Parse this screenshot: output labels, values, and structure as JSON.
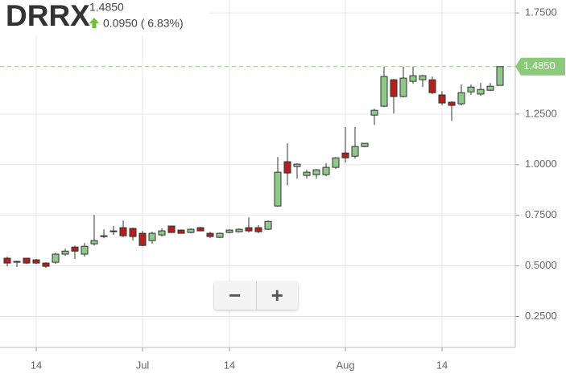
{
  "chart_data": {
    "type": "candlestick",
    "title": "DRRX",
    "price_label": "1.4850",
    "change_label": "0.0950 ( 6.83%)",
    "last": {
      "value": 1.485,
      "label": "1.4850"
    },
    "categories": [
      null,
      null,
      null,
      "14",
      null,
      null,
      null,
      null,
      null,
      null,
      null,
      null,
      null,
      null,
      "Jul",
      null,
      null,
      null,
      null,
      null,
      null,
      null,
      null,
      "14",
      null,
      null,
      null,
      null,
      null,
      null,
      null,
      null,
      null,
      null,
      null,
      "Aug",
      null,
      null,
      null,
      null,
      null,
      null,
      null,
      null,
      null,
      "14",
      null,
      null,
      null,
      null,
      null,
      null
    ],
    "open": [
      0.538,
      0.522,
      0.538,
      0.53,
      0.514,
      0.518,
      0.558,
      0.593,
      0.558,
      0.609,
      0.649,
      0.673,
      0.689,
      0.685,
      0.661,
      0.625,
      0.653,
      0.697,
      0.677,
      0.665,
      0.689,
      0.661,
      0.641,
      0.665,
      0.669,
      0.689,
      0.689,
      0.681,
      0.796,
      1.015,
      0.991,
      0.947,
      0.951,
      0.951,
      0.987,
      1.058,
      1.042,
      1.09,
      1.245,
      1.289,
      1.42,
      1.337,
      1.412,
      1.42,
      1.42,
      1.345,
      1.309,
      1.301,
      1.36,
      1.349,
      1.368,
      1.392
    ],
    "high": [
      0.546,
      0.526,
      0.54,
      0.534,
      0.518,
      0.565,
      0.585,
      0.601,
      0.613,
      0.752,
      0.681,
      0.697,
      0.724,
      0.689,
      0.673,
      0.669,
      0.685,
      0.697,
      0.681,
      0.685,
      0.693,
      0.669,
      0.665,
      0.681,
      0.685,
      0.74,
      0.701,
      0.724,
      1.038,
      1.106,
      1.007,
      0.975,
      0.979,
      1.007,
      1.038,
      1.186,
      1.186,
      1.106,
      1.277,
      1.484,
      1.424,
      1.484,
      1.484,
      1.444,
      1.436,
      1.364,
      1.313,
      1.396,
      1.396,
      1.404,
      1.404,
      1.485
    ],
    "low": [
      0.498,
      0.494,
      0.51,
      0.51,
      0.49,
      0.51,
      0.55,
      0.534,
      0.546,
      0.601,
      0.637,
      0.653,
      0.641,
      0.625,
      0.597,
      0.609,
      0.645,
      0.665,
      0.661,
      0.661,
      0.673,
      0.637,
      0.637,
      0.661,
      0.665,
      0.665,
      0.661,
      0.677,
      0.792,
      0.899,
      0.931,
      0.931,
      0.931,
      0.943,
      0.979,
      1.011,
      1.03,
      1.086,
      1.197,
      1.285,
      1.253,
      1.333,
      1.4,
      1.384,
      1.349,
      1.293,
      1.217,
      1.293,
      1.345,
      1.341,
      1.364,
      1.392
    ],
    "close": [
      0.514,
      0.522,
      0.514,
      0.514,
      0.498,
      0.558,
      0.573,
      0.573,
      0.597,
      0.625,
      0.649,
      0.673,
      0.649,
      0.645,
      0.601,
      0.661,
      0.673,
      0.665,
      0.661,
      0.681,
      0.673,
      0.645,
      0.661,
      0.677,
      0.681,
      0.673,
      0.669,
      0.72,
      0.963,
      0.959,
      1.003,
      0.963,
      0.975,
      0.987,
      1.034,
      1.034,
      1.09,
      1.106,
      1.269,
      1.436,
      1.337,
      1.428,
      1.44,
      1.44,
      1.356,
      1.305,
      1.293,
      1.356,
      1.384,
      1.372,
      1.388,
      1.485
    ],
    "up_color": "#8fc98a",
    "down_color": "#b3201c",
    "last_color": "#8cc97a",
    "ylim": [
      0.097,
      1.814
    ],
    "yticks": [
      {
        "value": 0.25,
        "label": "0.2500"
      },
      {
        "value": 0.5,
        "label": "0.5000"
      },
      {
        "value": 0.75,
        "label": "0.7500"
      },
      {
        "value": 1.0,
        "label": "1.0000"
      },
      {
        "value": 1.25,
        "label": "1.2500"
      },
      {
        "value": 1.75,
        "label": "1.7500"
      }
    ],
    "grid": true
  },
  "controls": {
    "zoom_out": "−",
    "zoom_in": "+"
  }
}
